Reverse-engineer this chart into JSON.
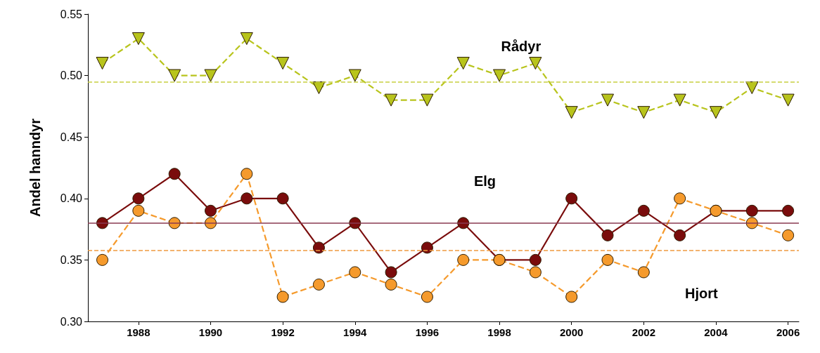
{
  "chart_data": {
    "type": "line",
    "ylabel": "Andel hanndyr",
    "x": [
      1987,
      1988,
      1989,
      1990,
      1991,
      1992,
      1993,
      1994,
      1995,
      1996,
      1997,
      1998,
      1999,
      2000,
      2001,
      2002,
      2003,
      2004,
      2005,
      2006
    ],
    "xlim": [
      1986.6,
      2006.3
    ],
    "xticks": [
      1988,
      1990,
      1992,
      1994,
      1996,
      1998,
      2000,
      2002,
      2004,
      2006
    ],
    "ylim": [
      0.3,
      0.55
    ],
    "yticks": [
      {
        "value": 0.3,
        "label": "0.30"
      },
      {
        "value": 0.35,
        "label": "0.35"
      },
      {
        "value": 0.4,
        "label": "0.40"
      },
      {
        "value": 0.45,
        "label": "0.45"
      },
      {
        "value": 0.5,
        "label": "0.50"
      },
      {
        "value": 0.55,
        "label": "0.55"
      }
    ],
    "grid": false,
    "legend": false,
    "series": [
      {
        "name": "Rådyr",
        "color": "#b8c41c",
        "marker": "triangle",
        "line_style": "dashed",
        "values": [
          0.51,
          0.53,
          0.5,
          0.5,
          0.53,
          0.51,
          0.49,
          0.5,
          0.48,
          0.48,
          0.51,
          0.5,
          0.51,
          0.47,
          0.48,
          0.47,
          0.48,
          0.47,
          0.49,
          0.48
        ]
      },
      {
        "name": "Elg",
        "color": "#7a0c0c",
        "marker": "circle",
        "line_style": "solid",
        "values": [
          0.38,
          0.4,
          0.42,
          0.39,
          0.4,
          0.4,
          0.36,
          0.38,
          0.34,
          0.36,
          0.38,
          0.35,
          0.35,
          0.4,
          0.37,
          0.39,
          0.37,
          0.39,
          0.39,
          0.39
        ]
      },
      {
        "name": "Hjort",
        "color": "#f59a2c",
        "marker": "circle",
        "line_style": "dashed",
        "values": [
          0.35,
          0.39,
          0.38,
          0.38,
          0.42,
          0.32,
          0.33,
          0.34,
          0.33,
          0.32,
          0.35,
          0.35,
          0.34,
          0.32,
          0.35,
          0.34,
          0.4,
          0.39,
          0.38,
          0.37
        ]
      }
    ],
    "ref_lines": [
      {
        "axis": "y",
        "value": 0.495,
        "color": "#c8d040",
        "line_style": "dashed"
      },
      {
        "axis": "y",
        "value": 0.38,
        "color": "#8a3a50",
        "line_style": "solid"
      },
      {
        "axis": "y",
        "value": 0.358,
        "color": "#f09a40",
        "line_style": "dashed"
      }
    ]
  }
}
